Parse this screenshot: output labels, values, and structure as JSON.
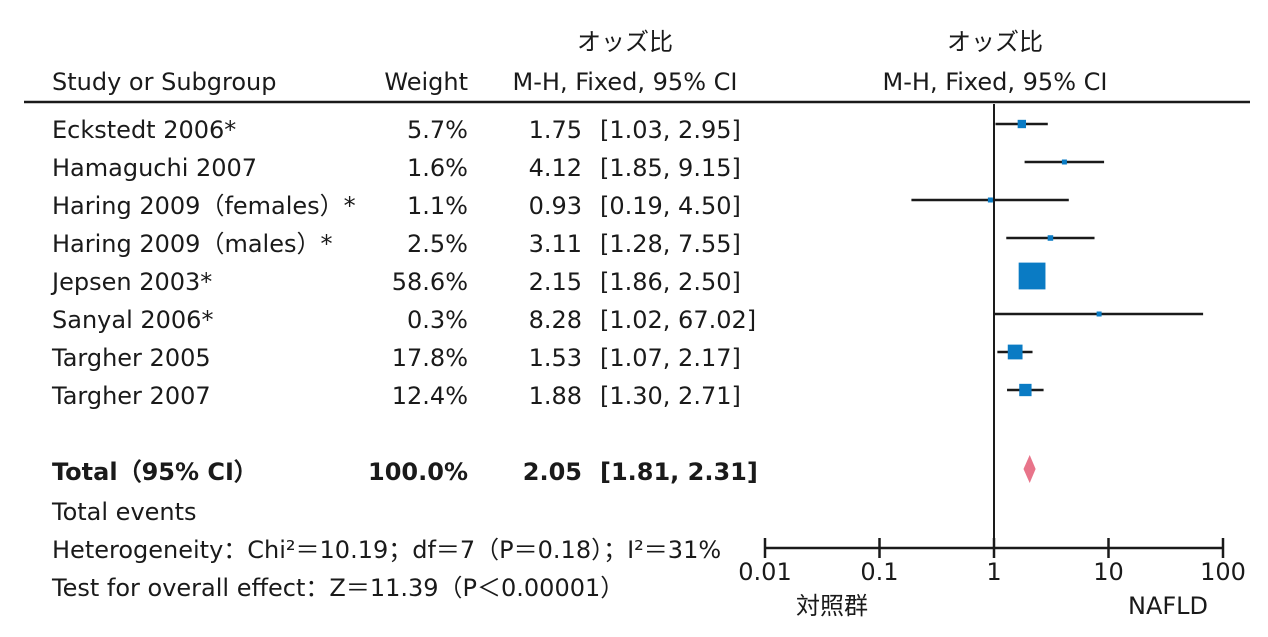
{
  "header": {
    "col_study": "Study or Subgroup",
    "col_weight": "Weight",
    "col_or_top": "オッズ比",
    "col_or_sub": "M-H, Fixed, 95% CI",
    "plot_top": "オッズ比",
    "plot_sub": "M-H, Fixed, 95% CI"
  },
  "rows": [
    {
      "study": "Eckstedt 2006*",
      "weight": "5.7%",
      "or": "1.75",
      "ci": "[1.03, 2.95]"
    },
    {
      "study": "Hamaguchi 2007",
      "weight": "1.6%",
      "or": "4.12",
      "ci": "[1.85, 9.15]"
    },
    {
      "study": "Haring 2009（females）*",
      "weight": "1.1%",
      "or": "0.93",
      "ci": "[0.19, 4.50]"
    },
    {
      "study": "Haring 2009（males）*",
      "weight": "2.5%",
      "or": "3.11",
      "ci": "[1.28, 7.55]"
    },
    {
      "study": "Jepsen 2003*",
      "weight": "58.6%",
      "or": "2.15",
      "ci": "[1.86, 2.50]"
    },
    {
      "study": "Sanyal 2006*",
      "weight": "0.3%",
      "or": "8.28",
      "ci": "[1.02, 67.02]"
    },
    {
      "study": "Targher 2005",
      "weight": "17.8%",
      "or": "1.53",
      "ci": "[1.07, 2.17]"
    },
    {
      "study": "Targher 2007",
      "weight": "12.4%",
      "or": "1.88",
      "ci": "[1.30, 2.71]"
    }
  ],
  "total": {
    "label": "Total（95% CI）",
    "weight": "100.0%",
    "or": "2.05",
    "ci": "[1.81, 2.31]"
  },
  "footer": {
    "events": "Total events",
    "heterogeneity": "Heterogeneity：Chi²＝10.19；df＝7（P＝0.18）；I²＝31%",
    "overall": "Test for overall effect：Z＝11.39（P＜0.00001）"
  },
  "axis": {
    "left_label": "対照群",
    "right_label": "NAFLD"
  },
  "colors": {
    "square": "#0a7bc4",
    "diamond": "#e8748a",
    "line": "#1a1a1a"
  },
  "chart_data": {
    "type": "forest",
    "scale": "log",
    "xlim": [
      0.01,
      100
    ],
    "ticks": [
      0.01,
      0.1,
      1,
      10,
      100
    ],
    "tick_labels": [
      "0.01",
      "0.1",
      "1",
      "10",
      "100"
    ],
    "reference": 1,
    "studies": [
      {
        "name": "Eckstedt 2006*",
        "or": 1.75,
        "lo": 1.03,
        "hi": 2.95,
        "weight": 5.7
      },
      {
        "name": "Hamaguchi 2007",
        "or": 4.12,
        "lo": 1.85,
        "hi": 9.15,
        "weight": 1.6
      },
      {
        "name": "Haring 2009（females）*",
        "or": 0.93,
        "lo": 0.19,
        "hi": 4.5,
        "weight": 1.1
      },
      {
        "name": "Haring 2009（males）*",
        "or": 3.11,
        "lo": 1.28,
        "hi": 7.55,
        "weight": 2.5
      },
      {
        "name": "Jepsen 2003*",
        "or": 2.15,
        "lo": 1.86,
        "hi": 2.5,
        "weight": 58.6
      },
      {
        "name": "Sanyal 2006*",
        "or": 8.28,
        "lo": 1.02,
        "hi": 67.02,
        "weight": 0.3
      },
      {
        "name": "Targher 2005",
        "or": 1.53,
        "lo": 1.07,
        "hi": 2.17,
        "weight": 17.8
      },
      {
        "name": "Targher 2007",
        "or": 1.88,
        "lo": 1.3,
        "hi": 2.71,
        "weight": 12.4
      }
    ],
    "total": {
      "or": 2.05,
      "lo": 1.81,
      "hi": 2.31,
      "weight": 100.0
    }
  }
}
